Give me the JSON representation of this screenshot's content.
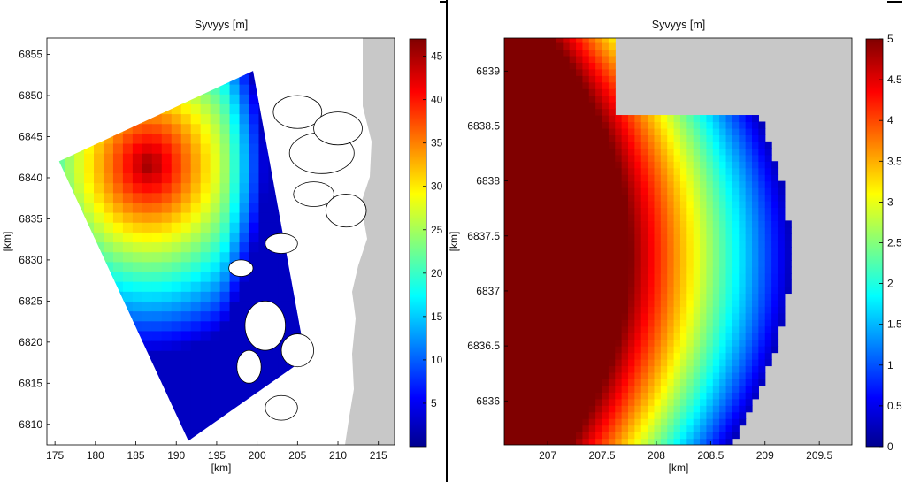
{
  "chart_data": [
    {
      "type": "heatmap",
      "title": "Syvyys [m]",
      "xlabel": "[km]",
      "ylabel": "[km]",
      "xlim": [
        174,
        217
      ],
      "ylim": [
        6807.5,
        6857
      ],
      "xticks": [
        "175",
        "180",
        "185",
        "190",
        "195",
        "200",
        "205",
        "210",
        "215"
      ],
      "yticks": [
        "6810",
        "6815",
        "6820",
        "6825",
        "6830",
        "6835",
        "6840",
        "6845",
        "6850",
        "6855"
      ],
      "colorbar": {
        "range": [
          0,
          47
        ],
        "ticks": [
          "5",
          "10",
          "15",
          "20",
          "25",
          "30",
          "35",
          "40",
          "45"
        ],
        "colormap": "jet"
      },
      "land_color": "#c8c8c8",
      "description_of_field": {
        "deep_region_center": [
          186,
          6841
        ],
        "deep_value": 46,
        "shallow_near_coast_value": 3
      }
    },
    {
      "type": "heatmap",
      "title": "Syvyys [m]",
      "xlabel": "[km]",
      "ylabel": "[km]",
      "xlim": [
        206.6,
        209.8
      ],
      "ylim": [
        6835.6,
        6839.3
      ],
      "xticks": [
        "207",
        "207.5",
        "208",
        "208.5",
        "209",
        "209.5"
      ],
      "yticks": [
        "6836",
        "6836.5",
        "6837",
        "6837.5",
        "6838",
        "6838.5",
        "6839"
      ],
      "colorbar": {
        "range": [
          0,
          5
        ],
        "ticks": [
          "0",
          "0.5",
          "1",
          "1.5",
          "2",
          "2.5",
          "3",
          "3.5",
          "4",
          "4.5",
          "5"
        ],
        "colormap": "jet"
      },
      "land_color": "#c8c8c8",
      "description_of_field": {
        "bay_center": [
          208.6,
          6837.3
        ],
        "bay_center_value": 3,
        "open_water_value": 5
      }
    }
  ]
}
